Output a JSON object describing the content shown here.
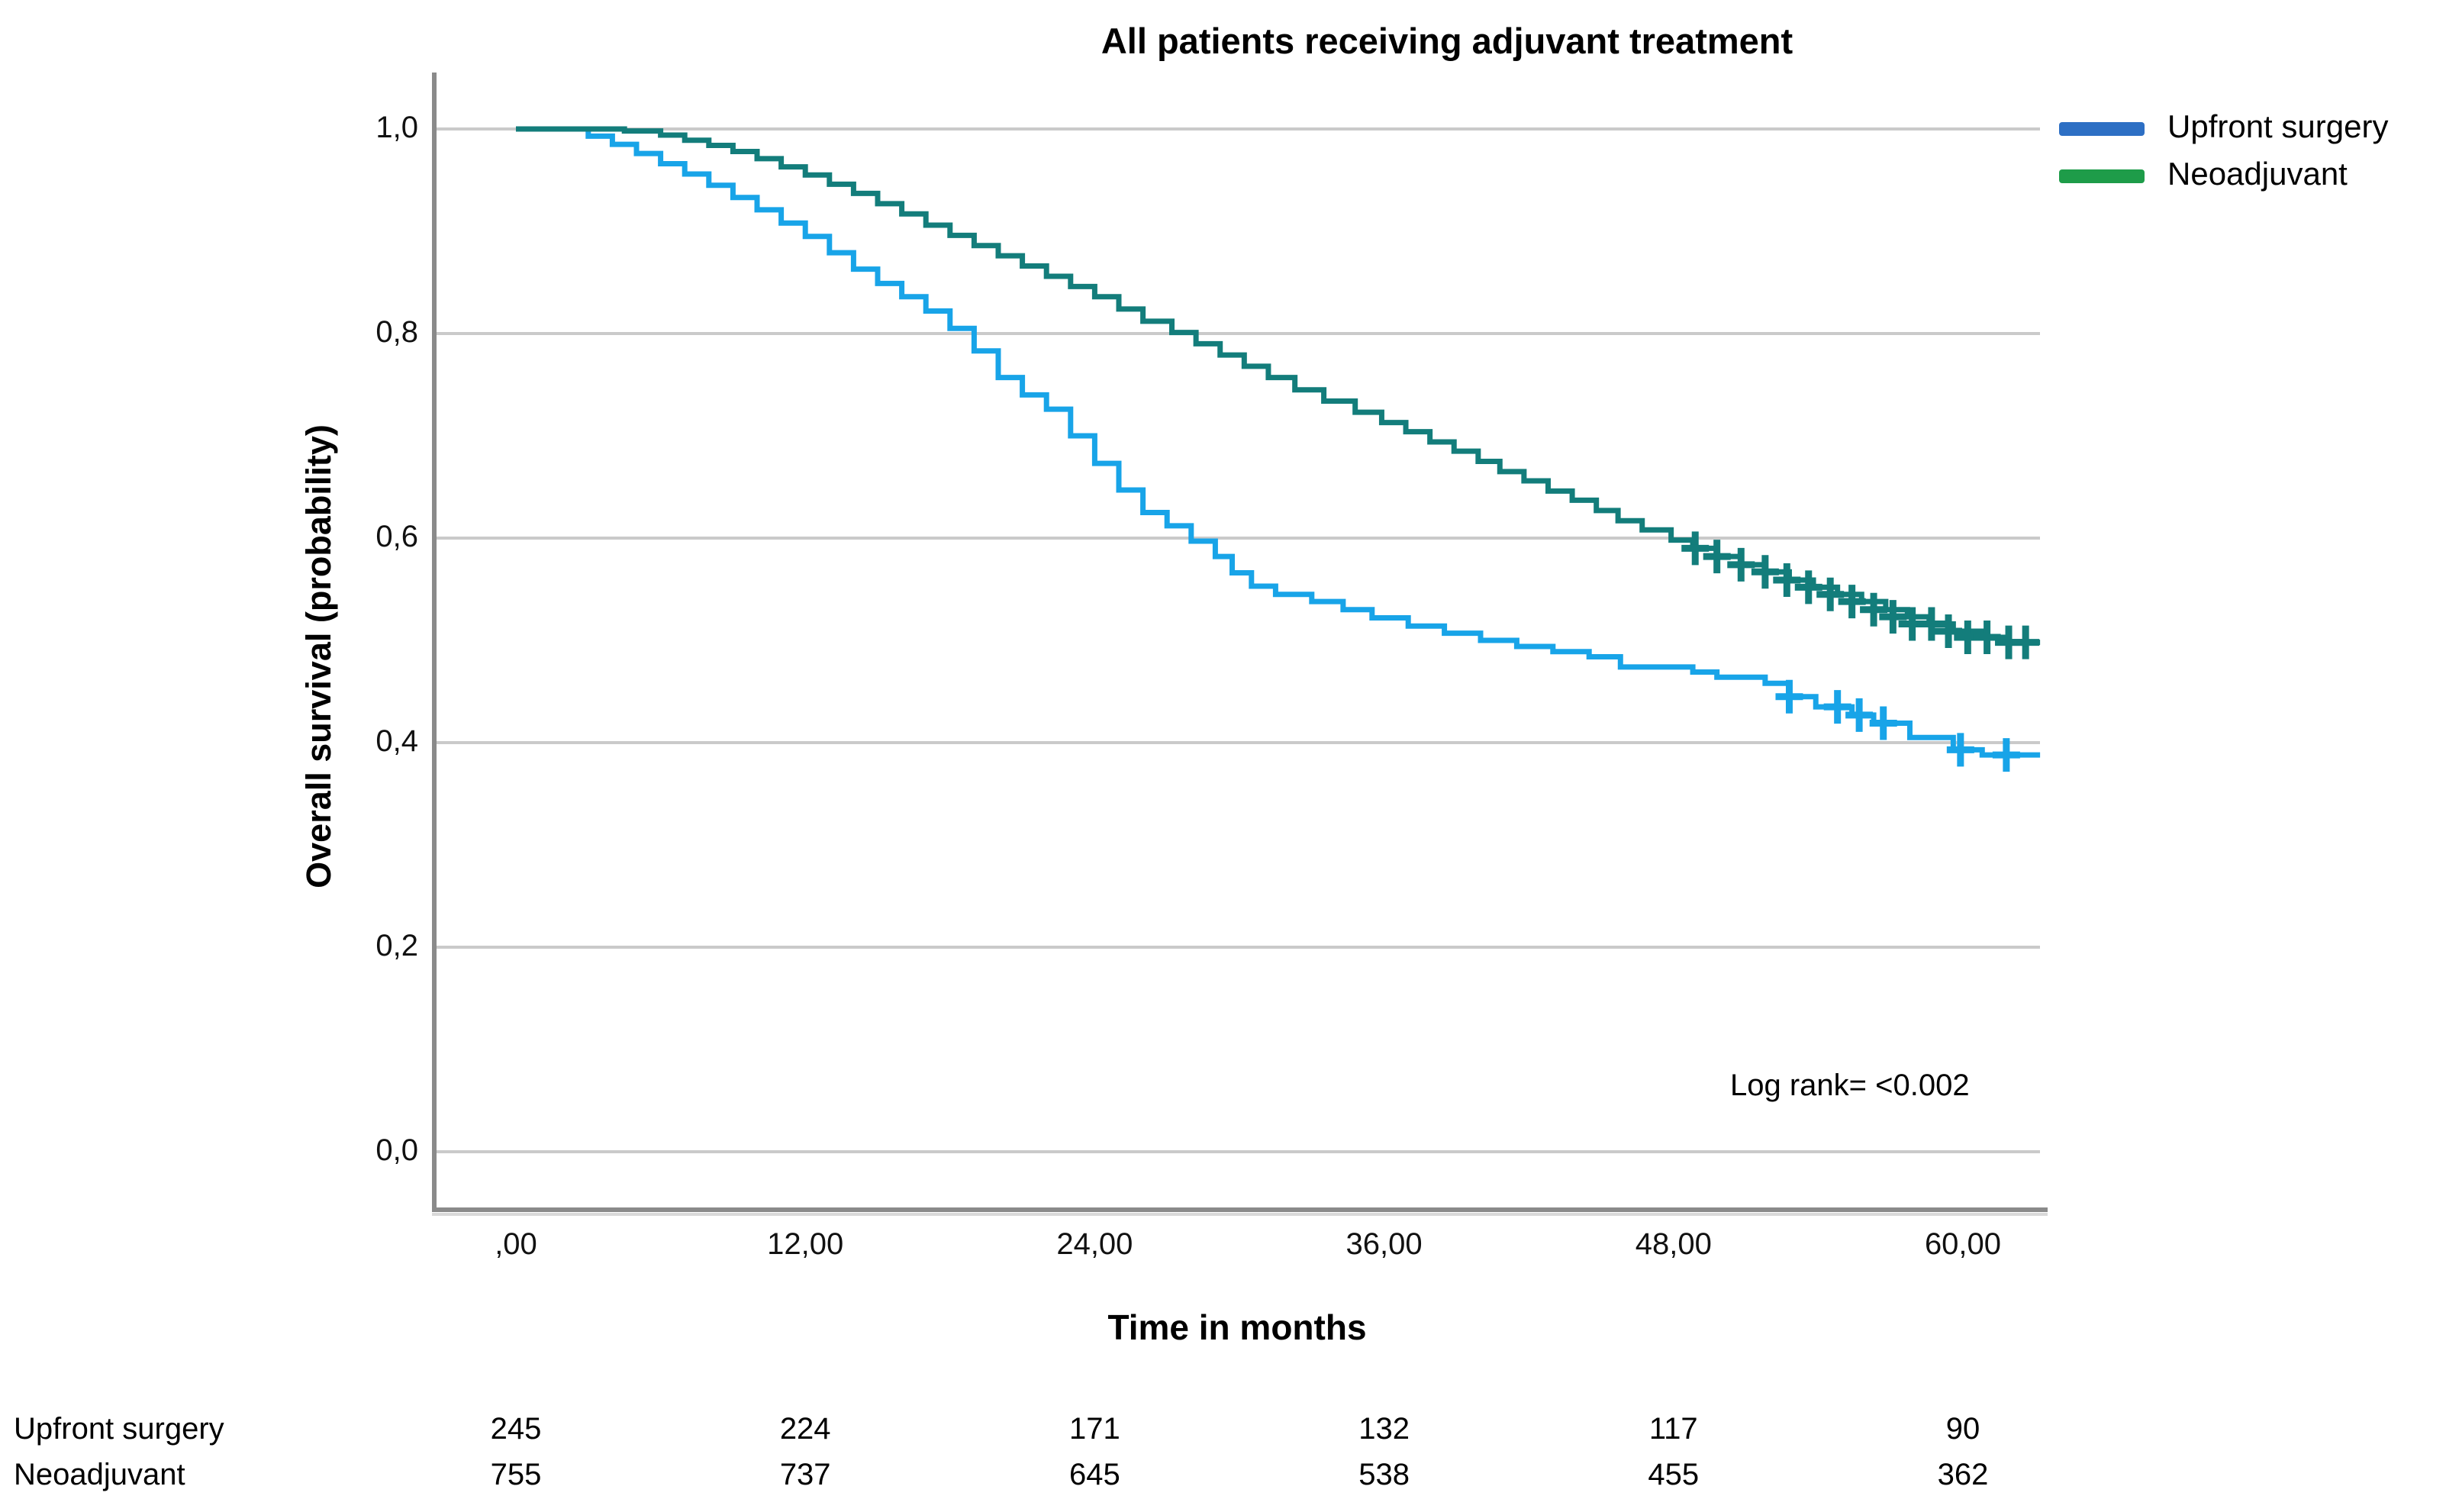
{
  "title": "All patients receiving adjuvant treatment",
  "legend": {
    "items": [
      {
        "label": "Upfront surgery",
        "color": "#2D6FC4"
      },
      {
        "label": "Neoadjuvant",
        "color": "#1E9C49"
      }
    ]
  },
  "annotation": {
    "log_rank": "Log rank= <0.002"
  },
  "chart_data": {
    "type": "line",
    "subtype": "kaplan-meier-step",
    "title": "All patients receiving adjuvant treatment",
    "xlabel": "Time in months",
    "ylabel": "Overall survival (probability)",
    "xlim": [
      0,
      64
    ],
    "ylim": [
      0,
      1.0
    ],
    "grid": "horizontal",
    "legend_position": "top-right",
    "xticks": {
      "values": [
        0,
        12,
        24,
        36,
        48,
        60
      ],
      "labels": [
        ",00",
        "12,00",
        "24,00",
        "36,00",
        "48,00",
        "60,00"
      ]
    },
    "yticks": {
      "values": [
        1.0,
        0.8,
        0.6,
        0.4,
        0.2,
        0.0
      ],
      "labels": [
        "1,0",
        "0,8",
        "0,6",
        "0,4",
        "0,2",
        "0,0"
      ]
    },
    "colors": {
      "gridline": "#cacaca",
      "axis": "#8a8a8a"
    },
    "series": [
      {
        "name": "Upfront surgery",
        "color": "#18A4E8",
        "steps": [
          [
            0,
            1.0
          ],
          [
            3,
            0.993
          ],
          [
            4,
            0.985
          ],
          [
            5,
            0.976
          ],
          [
            6,
            0.966
          ],
          [
            7,
            0.956
          ],
          [
            8,
            0.945
          ],
          [
            9,
            0.933
          ],
          [
            10,
            0.921
          ],
          [
            11,
            0.908
          ],
          [
            12,
            0.895
          ],
          [
            13,
            0.879
          ],
          [
            14,
            0.863
          ],
          [
            15,
            0.849
          ],
          [
            16,
            0.836
          ],
          [
            17,
            0.822
          ],
          [
            18,
            0.805
          ],
          [
            19,
            0.783
          ],
          [
            20,
            0.757
          ],
          [
            21,
            0.74
          ],
          [
            22,
            0.726
          ],
          [
            23,
            0.7
          ],
          [
            24,
            0.673
          ],
          [
            25,
            0.647
          ],
          [
            26,
            0.625
          ],
          [
            27,
            0.612
          ],
          [
            28,
            0.597
          ],
          [
            29,
            0.582
          ],
          [
            29.7,
            0.566
          ],
          [
            30.5,
            0.553
          ],
          [
            31.5,
            0.545
          ],
          [
            33,
            0.538
          ],
          [
            34.3,
            0.53
          ],
          [
            35.5,
            0.522
          ],
          [
            37,
            0.514
          ],
          [
            38.5,
            0.507
          ],
          [
            40,
            0.5
          ],
          [
            41.5,
            0.494
          ],
          [
            43,
            0.489
          ],
          [
            44.5,
            0.484
          ],
          [
            45.8,
            0.474
          ],
          [
            48.8,
            0.469
          ],
          [
            49.8,
            0.464
          ],
          [
            51.8,
            0.458
          ],
          [
            52.8,
            0.445
          ],
          [
            53.9,
            0.435
          ],
          [
            55.4,
            0.427
          ],
          [
            56.3,
            0.419
          ],
          [
            57.8,
            0.405
          ],
          [
            59.6,
            0.393
          ],
          [
            60.8,
            0.388
          ],
          [
            63.2,
            0.388
          ]
        ],
        "censors": [
          [
            52.8,
            0.445
          ],
          [
            54.8,
            0.435
          ],
          [
            55.7,
            0.427
          ],
          [
            56.7,
            0.419
          ],
          [
            59.9,
            0.393
          ],
          [
            61.8,
            0.388
          ]
        ]
      },
      {
        "name": "Neoadjuvant",
        "color": "#137D7B",
        "steps": [
          [
            0,
            1.0
          ],
          [
            4.5,
            0.998
          ],
          [
            6,
            0.994
          ],
          [
            7,
            0.989
          ],
          [
            8,
            0.984
          ],
          [
            9,
            0.978
          ],
          [
            10,
            0.971
          ],
          [
            11,
            0.963
          ],
          [
            12,
            0.955
          ],
          [
            13,
            0.946
          ],
          [
            14,
            0.937
          ],
          [
            15,
            0.927
          ],
          [
            16,
            0.917
          ],
          [
            17,
            0.906
          ],
          [
            18,
            0.896
          ],
          [
            19,
            0.886
          ],
          [
            20,
            0.876
          ],
          [
            21,
            0.866
          ],
          [
            22,
            0.856
          ],
          [
            23,
            0.846
          ],
          [
            24,
            0.836
          ],
          [
            25,
            0.824
          ],
          [
            26,
            0.812
          ],
          [
            27.2,
            0.801
          ],
          [
            28.2,
            0.79
          ],
          [
            29.2,
            0.779
          ],
          [
            30.2,
            0.768
          ],
          [
            31.2,
            0.757
          ],
          [
            32.3,
            0.745
          ],
          [
            33.5,
            0.734
          ],
          [
            34.8,
            0.723
          ],
          [
            35.9,
            0.713
          ],
          [
            36.9,
            0.704
          ],
          [
            37.9,
            0.694
          ],
          [
            38.9,
            0.685
          ],
          [
            39.9,
            0.675
          ],
          [
            40.8,
            0.665
          ],
          [
            41.8,
            0.656
          ],
          [
            42.8,
            0.646
          ],
          [
            43.8,
            0.637
          ],
          [
            44.8,
            0.627
          ],
          [
            45.7,
            0.617
          ],
          [
            46.7,
            0.608
          ],
          [
            47.9,
            0.598
          ],
          [
            48.8,
            0.59
          ],
          [
            49.8,
            0.582
          ],
          [
            50.8,
            0.574
          ],
          [
            51.8,
            0.567
          ],
          [
            52.8,
            0.559
          ],
          [
            53.8,
            0.552
          ],
          [
            54.8,
            0.545
          ],
          [
            55.8,
            0.538
          ],
          [
            56.8,
            0.53
          ],
          [
            57.7,
            0.523
          ],
          [
            58.6,
            0.516
          ],
          [
            59.6,
            0.509
          ],
          [
            60.8,
            0.503
          ],
          [
            61.9,
            0.498
          ],
          [
            63.2,
            0.498
          ]
        ],
        "censors": [
          [
            48.9,
            0.59
          ],
          [
            49.8,
            0.582
          ],
          [
            50.8,
            0.574
          ],
          [
            51.8,
            0.567
          ],
          [
            52.7,
            0.559
          ],
          [
            53.6,
            0.552
          ],
          [
            54.5,
            0.545
          ],
          [
            55.4,
            0.538
          ],
          [
            56.3,
            0.53
          ],
          [
            57.1,
            0.523
          ],
          [
            57.9,
            0.516
          ],
          [
            58.7,
            0.516
          ],
          [
            59.4,
            0.509
          ],
          [
            60.2,
            0.503
          ],
          [
            61.0,
            0.503
          ],
          [
            61.9,
            0.498
          ],
          [
            62.6,
            0.498
          ]
        ]
      }
    ]
  },
  "risk_table": {
    "rows": [
      {
        "label": "Upfront surgery",
        "counts": [
          "245",
          "224",
          "171",
          "132",
          "117",
          "90"
        ]
      },
      {
        "label": "Neoadjuvant",
        "counts": [
          "755",
          "737",
          "645",
          "538",
          "455",
          "362"
        ]
      }
    ]
  }
}
